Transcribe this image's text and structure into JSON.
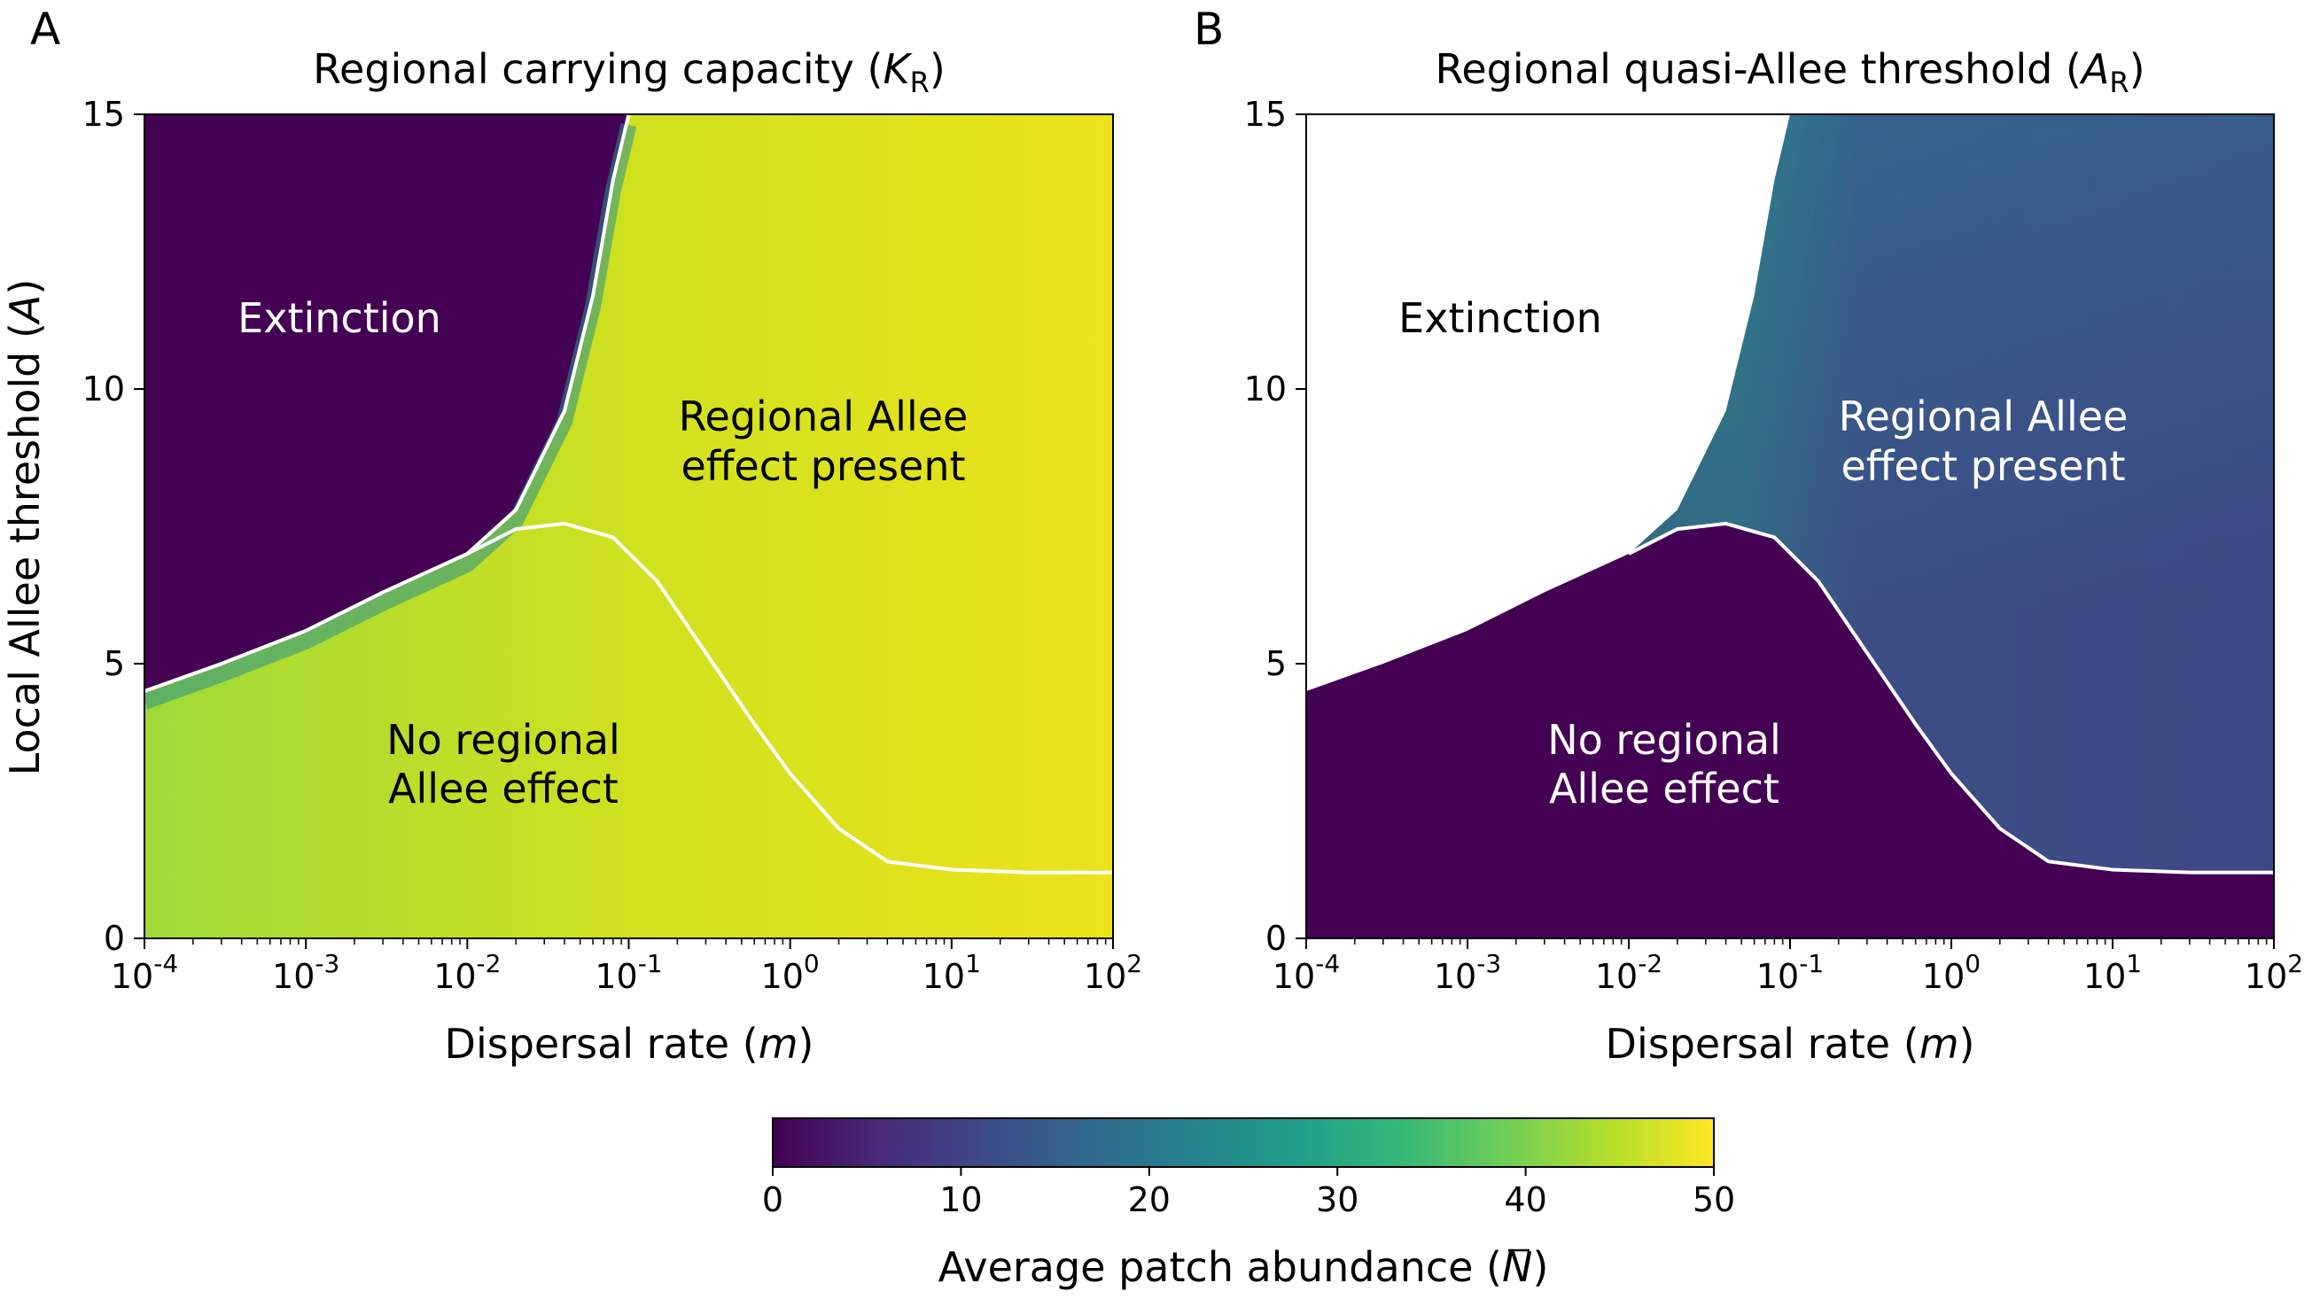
{
  "figure": {
    "panel_labels": [
      "A",
      "B"
    ],
    "colorbar": {
      "label_main": "Average patch abundance (",
      "label_symbol": "N",
      "label_close": ")",
      "ticks": [
        "0",
        "10",
        "20",
        "30",
        "40",
        "50"
      ],
      "range": [
        0,
        50
      ],
      "colormap": "viridis",
      "stops": [
        "#440154",
        "#482878",
        "#3e4989",
        "#31688e",
        "#26828e",
        "#1f9e89",
        "#35b779",
        "#6ece58",
        "#b5de2b",
        "#fde725"
      ]
    }
  },
  "chart_data": [
    {
      "type": "heatmap",
      "panel": "A",
      "title_main": "Regional carrying capacity (",
      "title_sym": "K",
      "title_sub": "R",
      "title_close": ")",
      "xlabel_main": "Dispersal rate (",
      "xlabel_sym": "m",
      "xlabel_close": ")",
      "ylabel_main": "Local Allee threshold (",
      "ylabel_sym": "A",
      "ylabel_close": ")",
      "x_scale": "log",
      "xlim": [
        0.0001,
        100
      ],
      "ylim": [
        0,
        15
      ],
      "x_ticks": [
        0.0001,
        0.001,
        0.01,
        0.1,
        1,
        10,
        100
      ],
      "x_tick_exponents": [
        "-4",
        "-3",
        "-2",
        "-1",
        "0",
        "1",
        "2"
      ],
      "y_ticks": [
        "0",
        "5",
        "10",
        "15"
      ],
      "regions": {
        "extinction": "Extinction",
        "regional_line1": "Regional Allee",
        "regional_line2": "effect present",
        "no_line1": "No regional",
        "no_line2": "Allee effect"
      },
      "extinction_boundary": {
        "x": [
          0.0001,
          0.0003,
          0.001,
          0.003,
          0.01,
          0.02,
          0.04,
          0.06,
          0.08,
          0.1
        ],
        "y": [
          4.5,
          5.0,
          5.6,
          6.3,
          7.0,
          7.8,
          9.6,
          11.7,
          13.8,
          15.0
        ]
      },
      "regional_allee_boundary": {
        "x": [
          0.01,
          0.02,
          0.04,
          0.08,
          0.15,
          0.3,
          0.6,
          1,
          2,
          4,
          10,
          30,
          100
        ],
        "y": [
          7.0,
          7.45,
          7.55,
          7.3,
          6.5,
          5.2,
          3.9,
          3.0,
          2.0,
          1.4,
          1.25,
          1.2,
          1.2
        ]
      },
      "colors": {
        "curve": "#ffffff"
      }
    },
    {
      "type": "heatmap",
      "panel": "B",
      "title_main": "Regional quasi-Allee threshold (",
      "title_sym": "A",
      "title_sub": "R",
      "title_close": ")",
      "xlabel_main": "Dispersal rate (",
      "xlabel_sym": "m",
      "xlabel_close": ")",
      "x_scale": "log",
      "xlim": [
        0.0001,
        100
      ],
      "ylim": [
        0,
        15
      ],
      "x_ticks": [
        0.0001,
        0.001,
        0.01,
        0.1,
        1,
        10,
        100
      ],
      "x_tick_exponents": [
        "-4",
        "-3",
        "-2",
        "-1",
        "0",
        "1",
        "2"
      ],
      "y_ticks": [
        "0",
        "5",
        "10",
        "15"
      ],
      "regions": {
        "extinction": "Extinction",
        "regional_line1": "Regional Allee",
        "regional_line2": "effect present",
        "no_line1": "No regional",
        "no_line2": "Allee effect"
      },
      "extinction_boundary": {
        "x": [
          0.0001,
          0.0003,
          0.001,
          0.003,
          0.01,
          0.02,
          0.04,
          0.06,
          0.08,
          0.1
        ],
        "y": [
          4.5,
          5.0,
          5.6,
          6.3,
          7.0,
          7.8,
          9.6,
          11.7,
          13.8,
          15.0
        ]
      },
      "regional_allee_boundary": {
        "x": [
          0.01,
          0.02,
          0.04,
          0.08,
          0.15,
          0.3,
          0.6,
          1,
          2,
          4,
          10,
          30,
          100
        ],
        "y": [
          7.0,
          7.45,
          7.55,
          7.3,
          6.5,
          5.2,
          3.9,
          3.0,
          2.0,
          1.4,
          1.25,
          1.2,
          1.2
        ]
      },
      "colors": {
        "curve": "#ffffff"
      }
    }
  ]
}
